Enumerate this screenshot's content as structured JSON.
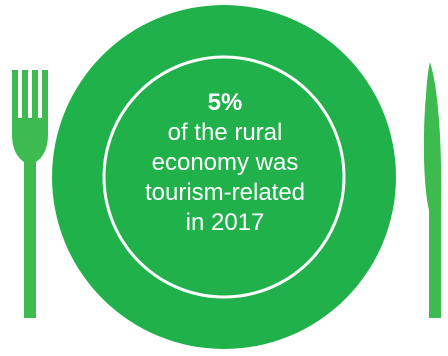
{
  "infographic": {
    "statistic": "5%",
    "caption_lines": [
      "of the rural",
      "economy was",
      "tourism-related",
      "in 2017"
    ]
  },
  "icons": {
    "left": "fork-icon",
    "center": "plate-icon",
    "right": "knife-icon"
  },
  "colors": {
    "plate_green": "#21b14b",
    "cutlery_green": "#3dbb4e",
    "plate_ring": "#ffffff",
    "text": "#ffffff"
  }
}
